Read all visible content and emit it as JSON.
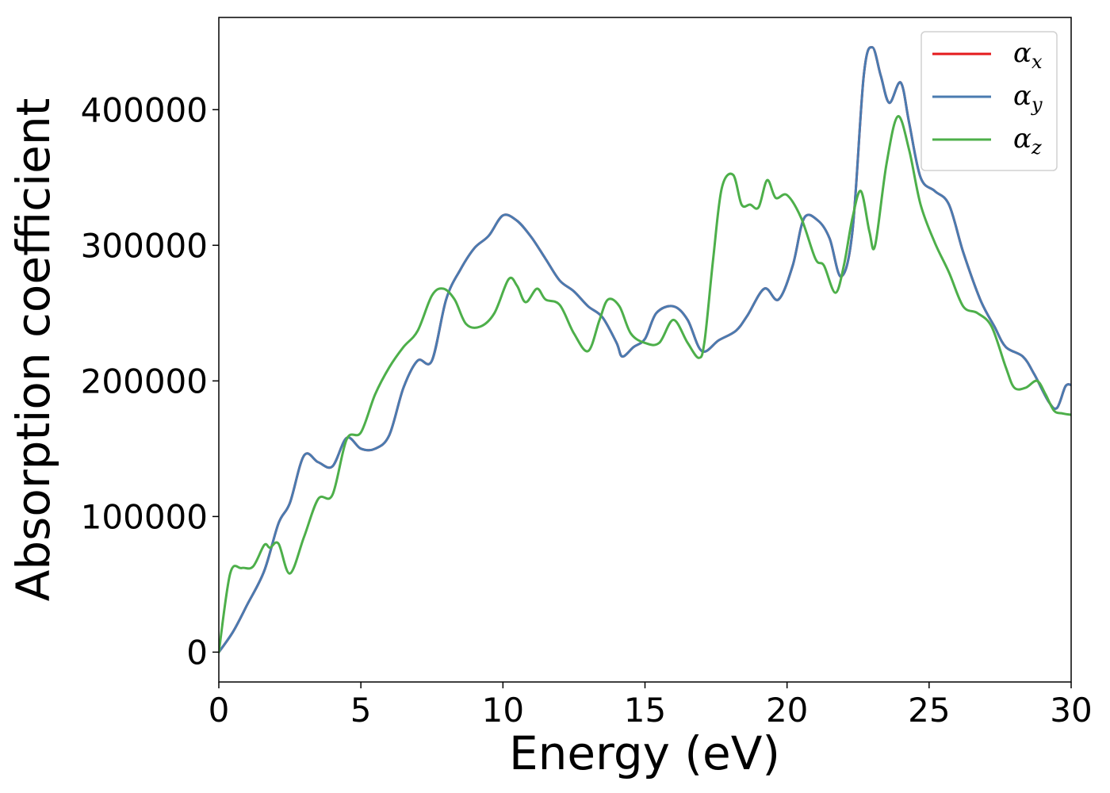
{
  "chart_data": {
    "type": "line",
    "title": "",
    "xlabel": "Energy (eV)",
    "ylabel": "Absorption coefficient",
    "xlim": [
      0,
      30
    ],
    "ylim": [
      -22000,
      468000
    ],
    "x_ticks": [
      0,
      5,
      10,
      15,
      20,
      25,
      30
    ],
    "x_tick_labels": [
      "0",
      "5",
      "10",
      "15",
      "20",
      "25",
      "30"
    ],
    "y_ticks": [
      0,
      100000,
      200000,
      300000,
      400000
    ],
    "y_tick_labels": [
      "0",
      "100000",
      "200000",
      "300000",
      "400000"
    ],
    "grid": false,
    "legend_position": "top-right",
    "series": [
      {
        "name": "α_x",
        "symbol": "α",
        "subscript": "x",
        "color": "#e41a1c",
        "points": [
          [
            0,
            0
          ],
          [
            0.5,
            15000
          ],
          [
            1,
            35000
          ],
          [
            1.6,
            60000
          ],
          [
            2.1,
            95000
          ],
          [
            2.5,
            110000
          ],
          [
            3,
            145000
          ],
          [
            3.5,
            140000
          ],
          [
            4,
            137000
          ],
          [
            4.5,
            158000
          ],
          [
            5,
            150000
          ],
          [
            5.5,
            150000
          ],
          [
            6,
            160000
          ],
          [
            6.5,
            195000
          ],
          [
            7,
            215000
          ],
          [
            7.5,
            215000
          ],
          [
            8,
            260000
          ],
          [
            8.5,
            282000
          ],
          [
            9,
            298000
          ],
          [
            9.5,
            307000
          ],
          [
            10,
            322000
          ],
          [
            10.5,
            318000
          ],
          [
            11,
            306000
          ],
          [
            11.5,
            290000
          ],
          [
            12,
            274000
          ],
          [
            12.5,
            266000
          ],
          [
            13,
            255000
          ],
          [
            13.5,
            247000
          ],
          [
            14,
            228000
          ],
          [
            14.2,
            218000
          ],
          [
            14.6,
            225000
          ],
          [
            15,
            231000
          ],
          [
            15.4,
            250000
          ],
          [
            16,
            255000
          ],
          [
            16.5,
            245000
          ],
          [
            17,
            222000
          ],
          [
            17.6,
            230000
          ],
          [
            18.2,
            237000
          ],
          [
            18.6,
            248000
          ],
          [
            19.2,
            268000
          ],
          [
            19.7,
            260000
          ],
          [
            20.2,
            285000
          ],
          [
            20.6,
            320000
          ],
          [
            21.1,
            318000
          ],
          [
            21.5,
            305000
          ],
          [
            21.9,
            277000
          ],
          [
            22.3,
            310000
          ],
          [
            22.7,
            425000
          ],
          [
            23,
            446000
          ],
          [
            23.3,
            425000
          ],
          [
            23.6,
            405000
          ],
          [
            24,
            420000
          ],
          [
            24.3,
            390000
          ],
          [
            24.7,
            350000
          ],
          [
            25.2,
            340000
          ],
          [
            25.7,
            330000
          ],
          [
            26.2,
            295000
          ],
          [
            26.8,
            260000
          ],
          [
            27.3,
            240000
          ],
          [
            27.7,
            225000
          ],
          [
            28.3,
            218000
          ],
          [
            28.7,
            205000
          ],
          [
            29.2,
            185000
          ],
          [
            29.5,
            180000
          ],
          [
            29.8,
            196000
          ],
          [
            30,
            197000
          ]
        ]
      },
      {
        "name": "α_y",
        "symbol": "α",
        "subscript": "y",
        "color": "#4a7bb0",
        "points": [
          [
            0,
            0
          ],
          [
            0.5,
            15000
          ],
          [
            1,
            35000
          ],
          [
            1.6,
            60000
          ],
          [
            2.1,
            95000
          ],
          [
            2.5,
            110000
          ],
          [
            3,
            145000
          ],
          [
            3.5,
            140000
          ],
          [
            4,
            137000
          ],
          [
            4.5,
            158000
          ],
          [
            5,
            150000
          ],
          [
            5.5,
            150000
          ],
          [
            6,
            160000
          ],
          [
            6.5,
            195000
          ],
          [
            7,
            215000
          ],
          [
            7.5,
            215000
          ],
          [
            8,
            260000
          ],
          [
            8.5,
            282000
          ],
          [
            9,
            298000
          ],
          [
            9.5,
            307000
          ],
          [
            10,
            322000
          ],
          [
            10.5,
            318000
          ],
          [
            11,
            306000
          ],
          [
            11.5,
            290000
          ],
          [
            12,
            274000
          ],
          [
            12.5,
            266000
          ],
          [
            13,
            255000
          ],
          [
            13.5,
            247000
          ],
          [
            14,
            228000
          ],
          [
            14.2,
            218000
          ],
          [
            14.6,
            225000
          ],
          [
            15,
            231000
          ],
          [
            15.4,
            250000
          ],
          [
            16,
            255000
          ],
          [
            16.5,
            245000
          ],
          [
            17,
            222000
          ],
          [
            17.6,
            230000
          ],
          [
            18.2,
            237000
          ],
          [
            18.6,
            248000
          ],
          [
            19.2,
            268000
          ],
          [
            19.7,
            260000
          ],
          [
            20.2,
            285000
          ],
          [
            20.6,
            320000
          ],
          [
            21.1,
            318000
          ],
          [
            21.5,
            305000
          ],
          [
            21.9,
            277000
          ],
          [
            22.3,
            310000
          ],
          [
            22.7,
            425000
          ],
          [
            23,
            446000
          ],
          [
            23.3,
            425000
          ],
          [
            23.6,
            405000
          ],
          [
            24,
            420000
          ],
          [
            24.3,
            390000
          ],
          [
            24.7,
            350000
          ],
          [
            25.2,
            340000
          ],
          [
            25.7,
            330000
          ],
          [
            26.2,
            295000
          ],
          [
            26.8,
            260000
          ],
          [
            27.3,
            240000
          ],
          [
            27.7,
            225000
          ],
          [
            28.3,
            218000
          ],
          [
            28.7,
            205000
          ],
          [
            29.2,
            185000
          ],
          [
            29.5,
            180000
          ],
          [
            29.8,
            196000
          ],
          [
            30,
            197000
          ]
        ]
      },
      {
        "name": "α_z",
        "symbol": "α",
        "subscript": "z",
        "color": "#4daf4a",
        "points": [
          [
            0,
            0
          ],
          [
            0.4,
            58000
          ],
          [
            0.8,
            62000
          ],
          [
            1.2,
            63000
          ],
          [
            1.6,
            79000
          ],
          [
            1.8,
            77000
          ],
          [
            2.1,
            80000
          ],
          [
            2.5,
            58000
          ],
          [
            3,
            85000
          ],
          [
            3.5,
            113000
          ],
          [
            4,
            116000
          ],
          [
            4.5,
            157000
          ],
          [
            5,
            162000
          ],
          [
            5.5,
            190000
          ],
          [
            6,
            210000
          ],
          [
            6.5,
            225000
          ],
          [
            7,
            237000
          ],
          [
            7.5,
            263000
          ],
          [
            7.9,
            268000
          ],
          [
            8.3,
            260000
          ],
          [
            8.7,
            242000
          ],
          [
            9.2,
            240000
          ],
          [
            9.7,
            250000
          ],
          [
            10.2,
            275000
          ],
          [
            10.5,
            270000
          ],
          [
            10.8,
            258000
          ],
          [
            11.2,
            268000
          ],
          [
            11.5,
            260000
          ],
          [
            12,
            256000
          ],
          [
            12.5,
            235000
          ],
          [
            13,
            222000
          ],
          [
            13.4,
            245000
          ],
          [
            13.7,
            260000
          ],
          [
            14.1,
            255000
          ],
          [
            14.5,
            235000
          ],
          [
            15,
            228000
          ],
          [
            15.5,
            228000
          ],
          [
            16,
            245000
          ],
          [
            16.5,
            228000
          ],
          [
            16.9,
            217000
          ],
          [
            17.1,
            230000
          ],
          [
            17.4,
            290000
          ],
          [
            17.7,
            342000
          ],
          [
            18.1,
            352000
          ],
          [
            18.4,
            330000
          ],
          [
            18.7,
            330000
          ],
          [
            19,
            328000
          ],
          [
            19.3,
            348000
          ],
          [
            19.6,
            335000
          ],
          [
            20,
            337000
          ],
          [
            20.5,
            320000
          ],
          [
            21,
            290000
          ],
          [
            21.3,
            285000
          ],
          [
            21.7,
            265000
          ],
          [
            22,
            285000
          ],
          [
            22.3,
            320000
          ],
          [
            22.6,
            340000
          ],
          [
            22.9,
            310000
          ],
          [
            23.1,
            300000
          ],
          [
            23.5,
            360000
          ],
          [
            23.9,
            395000
          ],
          [
            24.3,
            370000
          ],
          [
            24.7,
            330000
          ],
          [
            25.2,
            302000
          ],
          [
            25.7,
            280000
          ],
          [
            26.2,
            255000
          ],
          [
            26.7,
            250000
          ],
          [
            27.2,
            240000
          ],
          [
            27.7,
            210000
          ],
          [
            28,
            195000
          ],
          [
            28.4,
            195000
          ],
          [
            28.8,
            200000
          ],
          [
            29.1,
            190000
          ],
          [
            29.4,
            178000
          ],
          [
            29.7,
            176000
          ],
          [
            30,
            175000
          ]
        ]
      }
    ]
  }
}
